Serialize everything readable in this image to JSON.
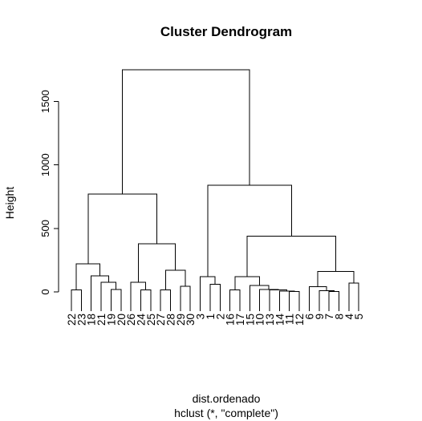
{
  "chart_data": {
    "type": "dendrogram",
    "title": "Cluster Dendrogram",
    "ylabel": "Height",
    "xlabel": "dist.ordenado",
    "sub": "hclust (*, \"complete\")",
    "ylim": [
      0,
      1750
    ],
    "yticks": [
      0,
      500,
      1000,
      1500
    ],
    "leaves": [
      "22",
      "23",
      "18",
      "21",
      "19",
      "20",
      "26",
      "24",
      "25",
      "27",
      "28",
      "29",
      "30",
      "3",
      "1",
      "2",
      "16",
      "17",
      "15",
      "10",
      "13",
      "14",
      "11",
      "12",
      "6",
      "9",
      "7",
      "8",
      "4",
      "5"
    ],
    "merges": [
      {
        "id": "A",
        "left": "22",
        "right": "23",
        "height": 15
      },
      {
        "id": "B",
        "left": "19",
        "right": "20",
        "height": 20
      },
      {
        "id": "C",
        "left": "21",
        "right": "B",
        "height": 75
      },
      {
        "id": "D",
        "left": "18",
        "right": "C",
        "height": 125
      },
      {
        "id": "E",
        "left": "A",
        "right": "D",
        "height": 220
      },
      {
        "id": "F",
        "left": "24",
        "right": "25",
        "height": 15
      },
      {
        "id": "G",
        "left": "26",
        "right": "F",
        "height": 75
      },
      {
        "id": "H",
        "left": "27",
        "right": "28",
        "height": 15
      },
      {
        "id": "I",
        "left": "29",
        "right": "30",
        "height": 45
      },
      {
        "id": "J",
        "left": "H",
        "right": "I",
        "height": 170
      },
      {
        "id": "K",
        "left": "G",
        "right": "J",
        "height": 380
      },
      {
        "id": "L",
        "left": "E",
        "right": "K",
        "height": 770
      },
      {
        "id": "M",
        "left": "1",
        "right": "2",
        "height": 60
      },
      {
        "id": "N",
        "left": "3",
        "right": "M",
        "height": 120
      },
      {
        "id": "O",
        "left": "16",
        "right": "17",
        "height": 15
      },
      {
        "id": "P",
        "left": "11",
        "right": "12",
        "height": 2
      },
      {
        "id": "Q",
        "left": "14",
        "right": "P",
        "height": 5
      },
      {
        "id": "R",
        "left": "13",
        "right": "Q",
        "height": 15
      },
      {
        "id": "S",
        "left": "10",
        "right": "R",
        "height": 20
      },
      {
        "id": "T",
        "left": "15",
        "right": "S",
        "height": 50
      },
      {
        "id": "U",
        "left": "O",
        "right": "T",
        "height": 120
      },
      {
        "id": "V",
        "left": "7",
        "right": "8",
        "height": 2
      },
      {
        "id": "W",
        "left": "9",
        "right": "V",
        "height": 10
      },
      {
        "id": "X",
        "left": "6",
        "right": "W",
        "height": 40
      },
      {
        "id": "Y",
        "left": "4",
        "right": "5",
        "height": 70
      },
      {
        "id": "Z",
        "left": "X",
        "right": "Y",
        "height": 160
      },
      {
        "id": "AA",
        "left": "U",
        "right": "Z",
        "height": 440
      },
      {
        "id": "AB",
        "left": "N",
        "right": "AA",
        "height": 840
      },
      {
        "id": "AC",
        "left": "L",
        "right": "AB",
        "height": 1750
      }
    ],
    "leaf_heights": {
      "3": 50
    }
  }
}
